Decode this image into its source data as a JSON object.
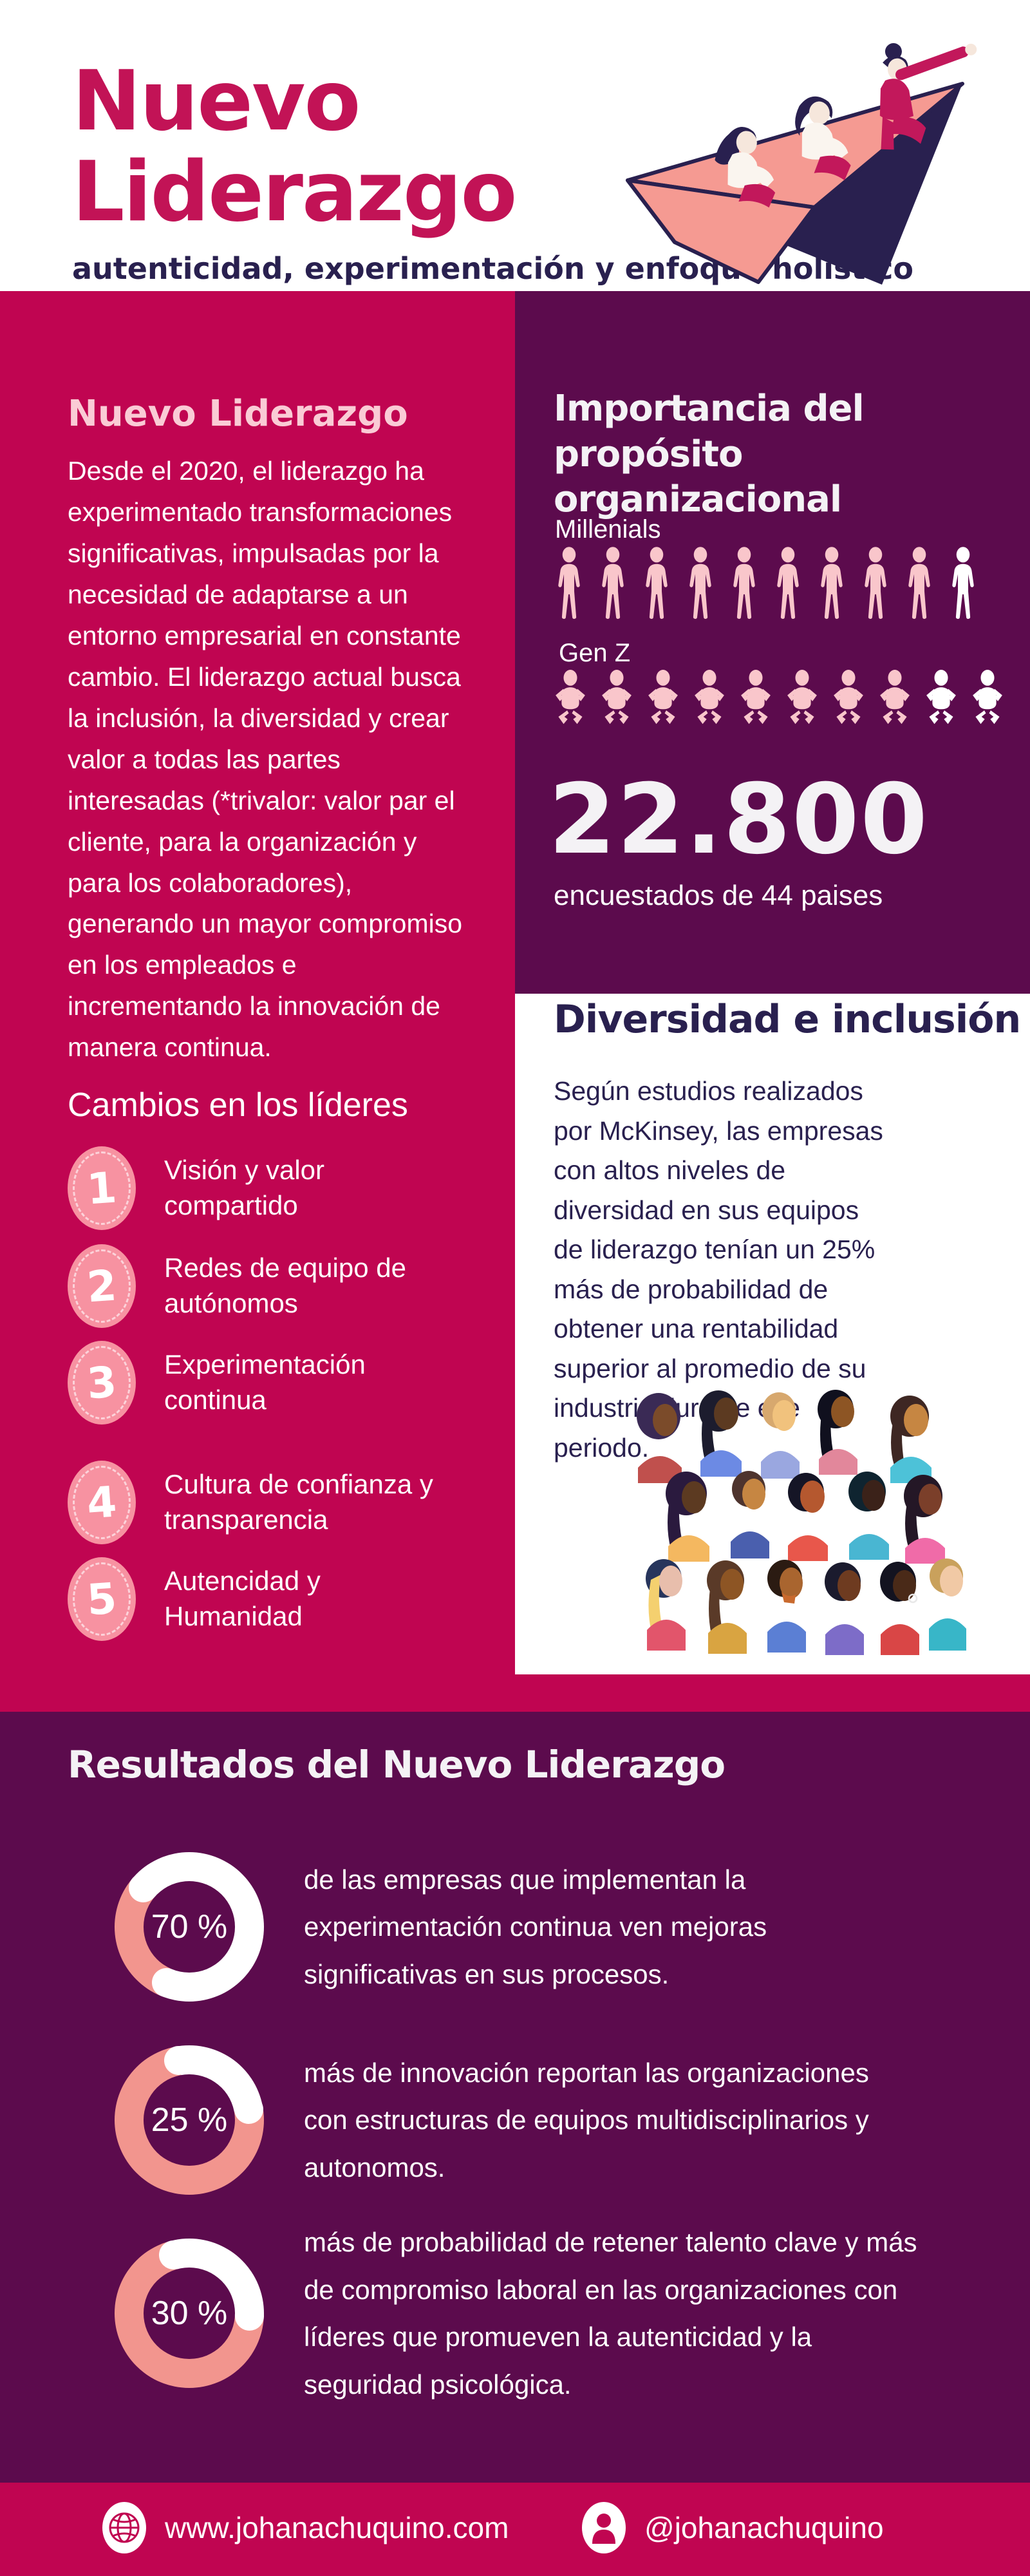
{
  "header": {
    "title_line1": "Nuevo",
    "title_line2": "Liderazgo",
    "subtitle": "autenticidad, experimentación y enfoque holístico"
  },
  "left_column": {
    "heading": "Nuevo Liderazgo",
    "paragraph": "Desde el 2020, el liderazgo ha experimentado transformaciones significativas, impulsadas por la necesidad de adaptarse a un entorno empresarial en constante cambio. El liderazgo actual busca la inclusión, la diversidad y crear valor a todas las partes interesadas (*trivalor: valor par el cliente, para la organización y para los colaboradores), generando un mayor compromiso en los empleados e incrementando la innovación de manera continua.",
    "list_heading": "Cambios en los líderes",
    "items": [
      {
        "number": "1",
        "label": "Visión y valor compartido"
      },
      {
        "number": "2",
        "label": "Redes de equipo de autónomos"
      },
      {
        "number": "3",
        "label": "Experimentación continua"
      },
      {
        "number": "4",
        "label": "Cultura de confianza y  transparencia"
      },
      {
        "number": "5",
        "label": "Autencidad y Humanidad"
      }
    ]
  },
  "purpose_panel": {
    "heading": "Importancia del propósito organizacional",
    "groups": [
      {
        "label": "Millenials",
        "total": 10,
        "highlighted": 9
      },
      {
        "label": "Gen Z",
        "total": 10,
        "highlighted": 8
      }
    ],
    "stat_number": "22.800",
    "stat_caption": "encuestados de 44 paises"
  },
  "diversity_section": {
    "heading": "Diversidad e inclusión",
    "paragraph": "Según estudios realizados por McKinsey, las empresas con altos niveles de diversidad en sus equipos de liderazgo tenían un 25% más de probabilidad de obtener una rentabilidad superior al promedio de su industria durante ese periodo."
  },
  "results_section": {
    "heading": "Resultados del Nuevo Liderazgo",
    "items": [
      {
        "percent": "70 %",
        "value": 70,
        "rotation": -50,
        "text": "de las empresas que implementan la experimentación continua ven mejoras significativas en sus procesos."
      },
      {
        "percent": "25 %",
        "value": 25,
        "rotation": -10,
        "text": "más de innovación reportan las organizaciones con estructuras de equipos multidisciplinarios y autonomos."
      },
      {
        "percent": "30 %",
        "value": 30,
        "rotation": -15,
        "text": "más de probabilidad de retener talento clave y más de compromiso laboral en las organizaciones con líderes que promueven la autenticidad y la seguridad psicológica."
      }
    ]
  },
  "footer": {
    "website": "www.johanachuquino.com",
    "handle": "@johanachuquino"
  },
  "colors": {
    "crimson": "#C00551",
    "title_crimson": "#C21356",
    "purple": "#5C0B4D",
    "navy": "#29204F",
    "pale_pink": "#FACBD5",
    "icon_pink": "#F9C6CB",
    "oval_pink": "#F792A1",
    "salmon": "#F2958E",
    "white": "#FFFFFF"
  },
  "chart_data": [
    {
      "type": "pictograph",
      "title": "Importancia del propósito organizacional",
      "categories": [
        "Millenials",
        "Gen Z"
      ],
      "series": [
        {
          "name": "destacados",
          "values": [
            9,
            8
          ]
        },
        {
          "name": "total de iconos",
          "values": [
            10,
            10
          ]
        }
      ],
      "annotation": "22.800 encuestados de 44 paises"
    },
    {
      "type": "pie",
      "title": "experimentación continua — mejoras en procesos",
      "labels": [
        "70 %",
        "resto"
      ],
      "values": [
        70,
        30
      ]
    },
    {
      "type": "pie",
      "title": "equipos multidisciplinarios y autonomos — innovación",
      "labels": [
        "25 %",
        "resto"
      ],
      "values": [
        25,
        75
      ]
    },
    {
      "type": "pie",
      "title": "autenticidad y seguridad psicológica — retención y compromiso",
      "labels": [
        "30 %",
        "resto"
      ],
      "values": [
        30,
        70
      ]
    }
  ]
}
